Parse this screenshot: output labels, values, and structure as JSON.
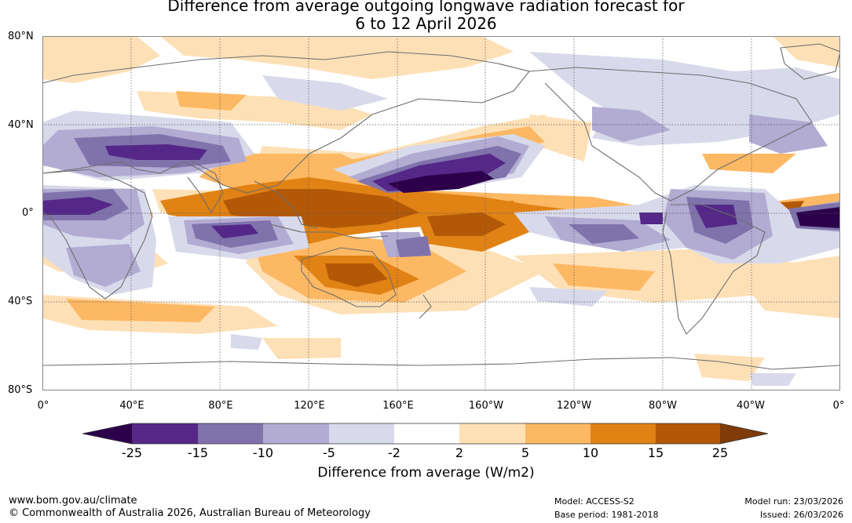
{
  "title": {
    "line1": "Difference from average outgoing longwave radiation forecast for",
    "line2": "6 to 12 April 2026"
  },
  "lat_labels": [
    "80°N",
    "40°N",
    "0°",
    "40°S",
    "80°S"
  ],
  "lon_labels": [
    "0°",
    "40°E",
    "80°E",
    "120°E",
    "160°E",
    "160°W",
    "120°W",
    "80°W",
    "40°W",
    "0°"
  ],
  "colorbar": {
    "title": "Difference from average (W/m2)",
    "ticks": [
      "-25",
      "-15",
      "-10",
      "-5",
      "-2",
      "2",
      "5",
      "10",
      "15",
      "25"
    ],
    "colors": [
      "#2d004b",
      "#542788",
      "#8073ac",
      "#b2abd2",
      "#d8daeb",
      "#ffffff",
      "#fee0b6",
      "#fdb863",
      "#e08214",
      "#b35806",
      "#7f3b08"
    ]
  },
  "footer": {
    "url": "www.bom.gov.au/climate",
    "copyright": "© Commonwealth of Australia 2026, Australian Bureau of Meteorology",
    "model": "Model: ACCESS-S2",
    "base_period": "Base period: 1981-2018",
    "model_run": "Model run: 23/03/2026",
    "issued": "Issued: 26/03/2026"
  }
}
